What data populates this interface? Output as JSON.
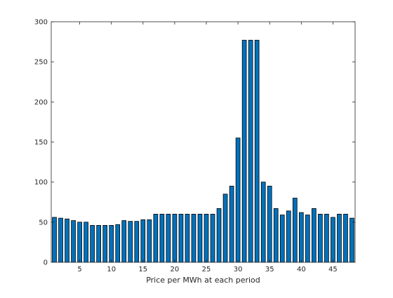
{
  "chart_data": {
    "type": "bar",
    "title": "",
    "xlabel": "Price per MWh at each period",
    "ylabel": "",
    "xlim": [
      0.5,
      48.5
    ],
    "ylim": [
      0,
      300
    ],
    "x_ticks": [
      5,
      10,
      15,
      20,
      25,
      30,
      35,
      40,
      45
    ],
    "y_ticks": [
      0,
      50,
      100,
      150,
      200,
      250,
      300
    ],
    "grid": false,
    "bar_color": "#0072bd",
    "edge_color": "#000000",
    "x": [
      1,
      2,
      3,
      4,
      5,
      6,
      7,
      8,
      9,
      10,
      11,
      12,
      13,
      14,
      15,
      16,
      17,
      18,
      19,
      20,
      21,
      22,
      23,
      24,
      25,
      26,
      27,
      28,
      29,
      30,
      31,
      32,
      33,
      34,
      35,
      36,
      37,
      38,
      39,
      40,
      41,
      42,
      43,
      44,
      45,
      46,
      47,
      48
    ],
    "values": [
      56,
      55,
      54,
      52,
      50,
      50,
      46,
      46,
      46,
      46,
      47,
      52,
      51,
      51,
      53,
      53,
      60,
      60,
      60,
      60,
      60,
      60,
      60,
      60,
      60,
      60,
      67,
      85,
      95,
      155,
      277,
      277,
      277,
      100,
      95,
      67,
      59,
      64,
      80,
      62,
      59,
      67,
      60,
      60,
      56,
      60,
      60,
      55
    ]
  }
}
